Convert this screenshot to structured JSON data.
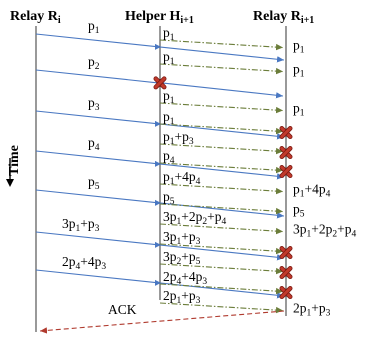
{
  "headers": {
    "relay_i": [
      "Relay R",
      "i"
    ],
    "helper": [
      "Helper H",
      "i+1"
    ],
    "relay_next": [
      "Relay R",
      "i+1"
    ]
  },
  "time_label": "Time",
  "colors": {
    "blue_arrow": "#4a78c2",
    "green_dashdot": "#6b7d3a",
    "red_dashed": "#b03a2e",
    "cross": "#c0392b",
    "cross_outline": "#7a1a12"
  },
  "legs": [
    {
      "relay_label": [
        [
          "p",
          "1"
        ]
      ],
      "helper_label": [
        [
          "p",
          "1"
        ]
      ],
      "dest_label": [
        [
          "p",
          "1"
        ]
      ],
      "arrival": "received"
    },
    {
      "relay_label": null,
      "helper_label": [
        [
          "p",
          "1"
        ]
      ],
      "dest_label": [
        [
          "p",
          "1"
        ]
      ],
      "arrival": "received"
    },
    {
      "relay_label": [
        [
          "p",
          "2"
        ]
      ],
      "helper_label": null,
      "dest_label": null,
      "arrival": "lost",
      "helper_cross": true
    },
    {
      "relay_label": null,
      "helper_label": [
        [
          "p",
          "1"
        ]
      ],
      "dest_label": [
        [
          "p",
          "1"
        ]
      ],
      "arrival": "received"
    },
    {
      "relay_label": [
        [
          "p",
          "3"
        ]
      ],
      "helper_label": [
        [
          "p",
          "1"
        ]
      ],
      "dest_label": null,
      "arrival": "lost"
    },
    {
      "relay_label": null,
      "helper_label": [
        [
          "p",
          "1"
        ],
        [
          "+",
          ""
        ],
        [
          "p",
          "3"
        ]
      ],
      "dest_label": null,
      "arrival": "lost"
    },
    {
      "relay_label": [
        [
          "p",
          "4"
        ]
      ],
      "helper_label": [
        [
          "p",
          "4"
        ]
      ],
      "dest_label": null,
      "arrival": "lost"
    },
    {
      "relay_label": null,
      "helper_label": [
        [
          "p",
          "1"
        ],
        [
          "+4",
          ""
        ],
        [
          "p",
          "4"
        ]
      ],
      "dest_label": [
        [
          "p",
          "1"
        ],
        [
          "+4",
          ""
        ],
        [
          "p",
          "4"
        ]
      ],
      "arrival": "received"
    },
    {
      "relay_label": [
        [
          "p",
          "5"
        ]
      ],
      "helper_label": [
        [
          "p",
          "5"
        ]
      ],
      "dest_label": [
        [
          "p",
          "5"
        ]
      ],
      "arrival": "received"
    },
    {
      "relay_label": null,
      "helper_label": [
        [
          "3p",
          "1"
        ],
        [
          "+2p",
          "2"
        ],
        [
          "+p",
          "4"
        ]
      ],
      "dest_label": [
        [
          "3p",
          "1"
        ],
        [
          "+2p",
          "2"
        ],
        [
          "+p",
          "4"
        ]
      ],
      "arrival": "received"
    },
    {
      "relay_label": [
        [
          "3p",
          "1"
        ],
        [
          "+p",
          "3"
        ]
      ],
      "helper_label": [
        [
          "3p",
          "1"
        ],
        [
          "+p",
          "3"
        ]
      ],
      "dest_label": null,
      "arrival": "lost"
    },
    {
      "relay_label": null,
      "helper_label": [
        [
          "3p",
          "2"
        ],
        [
          "+p",
          "5"
        ]
      ],
      "dest_label": null,
      "arrival": "lost"
    },
    {
      "relay_label": [
        [
          "2p",
          "4"
        ],
        [
          "+4p",
          "3"
        ]
      ],
      "helper_label": [
        [
          "2p",
          "4"
        ],
        [
          "+4p",
          "3"
        ]
      ],
      "dest_label": null,
      "arrival": "lost"
    },
    {
      "relay_label": null,
      "helper_label": [
        [
          "2p",
          "1"
        ],
        [
          "+p",
          "3"
        ]
      ],
      "dest_label": [
        [
          "2p",
          "1"
        ],
        [
          "+p",
          "3"
        ]
      ],
      "arrival": "received"
    }
  ],
  "ack": {
    "label": "ACK"
  }
}
